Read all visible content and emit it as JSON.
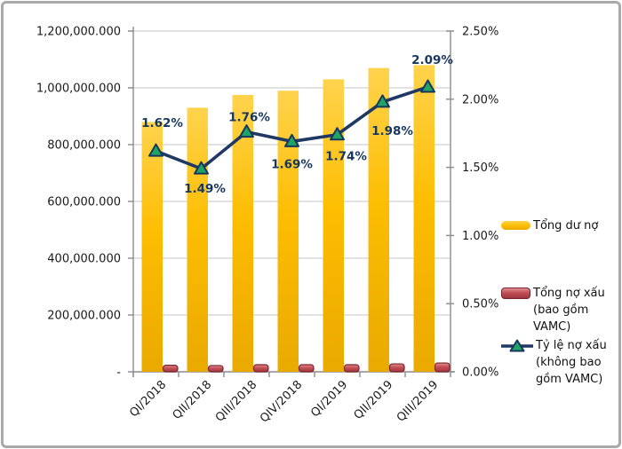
{
  "chart_data": {
    "type": "combo",
    "categories": [
      "QI/2018",
      "QII/2018",
      "QIII/2018",
      "QIV/2018",
      "QI/2019",
      "QII/2019",
      "QIII/2019"
    ],
    "series": [
      {
        "name": "Tổng dư nợ",
        "type": "bar",
        "axis": "left",
        "color": "#fdbd01",
        "color_light": "#ffd34d",
        "color_dark": "#eaa900",
        "values": [
          880000,
          930000,
          975000,
          990000,
          1030000,
          1070000,
          1080000
        ]
      },
      {
        "name": "Tổng nợ xấu (bao gồm VAMC)",
        "type": "bar",
        "axis": "left",
        "color": "#c34f56",
        "color_light": "#e08d92",
        "color_dark": "#9e353e",
        "border_color": "#7a252d",
        "values": [
          23000,
          22000,
          25000,
          25000,
          25000,
          28000,
          31000
        ]
      },
      {
        "name": "Tỷ lệ nợ xấu (không bao gồm VAMC)",
        "type": "line",
        "axis": "right",
        "line_color": "#1f3864",
        "marker": "triangle",
        "marker_color": "#21a366",
        "marker_border": "#17375e",
        "values": [
          1.62,
          1.49,
          1.76,
          1.69,
          1.74,
          1.98,
          2.09
        ],
        "labels": [
          "1.62%",
          "1.49%",
          "1.76%",
          "1.69%",
          "1.74%",
          "1.98%",
          "2.09%"
        ],
        "label_offsets": [
          [
            7,
            -27
          ],
          [
            4,
            27
          ],
          [
            3,
            -12
          ],
          [
            0,
            30
          ],
          [
            10,
            29
          ],
          [
            11,
            37
          ],
          [
            5,
            -26
          ]
        ]
      }
    ],
    "left_axis": {
      "min": 0,
      "max": 1200000,
      "tick_labels": [
        "1,200,000.000",
        "1,000,000.000",
        "800,000.000",
        "600,000.000",
        "400,000.000",
        "200,000.000",
        "-"
      ]
    },
    "right_axis": {
      "min": 0,
      "max": 2.5,
      "tick_labels": [
        "2.50%",
        "2.00%",
        "1.50%",
        "1.00%",
        "0.50%",
        "0.00%"
      ]
    },
    "grid": true,
    "legend_position": "right",
    "axis_color": "#8c8c8c",
    "gridline_color": "#c6c6c6",
    "label_color": "#17375e"
  }
}
